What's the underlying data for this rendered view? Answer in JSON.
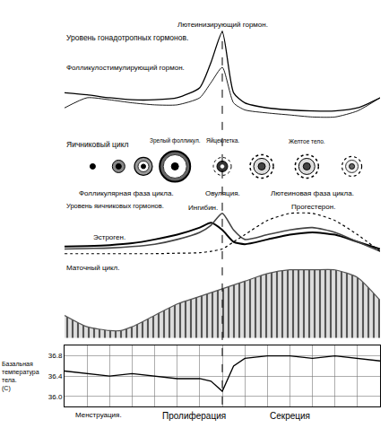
{
  "chart_data": [
    {
      "type": "line",
      "title": "Уровень гонадотропных гормонов.",
      "x": [
        0,
        2,
        4,
        6,
        8,
        10,
        12,
        13,
        14,
        15,
        16,
        18,
        20,
        22,
        24,
        26,
        28
      ],
      "xlim": [
        0,
        28
      ],
      "ylim": [
        0,
        10.5
      ],
      "tick_labels": false,
      "series": [
        {
          "name": "Лютеинизирующий гормон.",
          "color": "#000000",
          "line_style": "solid",
          "values": [
            4,
            3.8,
            3.5,
            3.3,
            3.3,
            3.5,
            4.5,
            7,
            10,
            4,
            3,
            2.5,
            2.3,
            2.2,
            2.2,
            2.5,
            3.5
          ]
        },
        {
          "name": "Фолликулостимулирующий гормон.",
          "color": "#000000",
          "line_style": "solid",
          "values": [
            2.5,
            3.5,
            3.3,
            3,
            2.8,
            2.8,
            3.5,
            5,
            6.5,
            3,
            2.3,
            2,
            1.8,
            1.6,
            1.6,
            2.2,
            3.5
          ]
        }
      ]
    },
    {
      "type": "diagram",
      "title": "Яичниковый цикл",
      "xlim": [
        0,
        28
      ],
      "ovulation_day": 14,
      "stages": [
        {
          "day": 2.5
        },
        {
          "day": 4.8
        },
        {
          "day": 7
        },
        {
          "day": 9.8,
          "label": "Зрелый фолликул."
        },
        {
          "day": 14,
          "label": "Яйцеклетка."
        },
        {
          "day": 17.5
        },
        {
          "day": 21.5,
          "label": "Желтое тело."
        },
        {
          "day": 25.5
        }
      ],
      "phases": [
        {
          "day": 5.5,
          "label": "Фолликулярная фаза цикла."
        },
        {
          "day": 14,
          "label": "Овуляция."
        },
        {
          "day": 22,
          "label": "Лютеиновая фаза цикла."
        }
      ]
    },
    {
      "type": "line",
      "title": "Уровень яичниковых гормонов.",
      "x": [
        0,
        2,
        4,
        6,
        8,
        10,
        12,
        13,
        14,
        15,
        16,
        18,
        20,
        22,
        24,
        26,
        28
      ],
      "xlim": [
        0,
        28
      ],
      "ylim": [
        0,
        12
      ],
      "tick_labels": false,
      "series": [
        {
          "name": "Эстроген.",
          "color": "#000000",
          "line_style": "solid",
          "values": [
            2.5,
            2.6,
            2.8,
            3.2,
            4,
            5,
            6.5,
            7.5,
            6,
            3.5,
            3,
            4,
            5,
            5.5,
            5,
            3.5,
            2
          ]
        },
        {
          "name": "Ингибин.",
          "color": "#444444",
          "line_style": "solid",
          "values": [
            2,
            2.1,
            2.2,
            2.5,
            3,
            4,
            5.5,
            7,
            9.5,
            6,
            4,
            5,
            6,
            6.5,
            5.5,
            3.5,
            1.5
          ]
        },
        {
          "name": "Прогестерон.",
          "color": "#000000",
          "line_style": "dotted",
          "values": [
            1,
            1,
            1,
            1,
            1,
            1.1,
            1.2,
            1.5,
            2,
            3.5,
            5,
            8,
            9.5,
            9.5,
            8,
            5,
            1.5
          ]
        }
      ]
    },
    {
      "type": "area",
      "title": "Маточный цикл.",
      "x": [
        0,
        2,
        4,
        5,
        6,
        8,
        10,
        12,
        14,
        16,
        18,
        20,
        22,
        24,
        26,
        28
      ],
      "xlim": [
        0,
        28
      ],
      "ylim": [
        0,
        10
      ],
      "tick_labels": false,
      "color": "#555555",
      "values": [
        3,
        1.5,
        1,
        1,
        1.5,
        3,
        4.5,
        5.5,
        6.5,
        7.5,
        8.5,
        9,
        9,
        9,
        8,
        5
      ]
    },
    {
      "type": "line",
      "title_lines": [
        "Базальная",
        "температура",
        "тела.",
        "(С)"
      ],
      "x": [
        0,
        2,
        4,
        6,
        8,
        10,
        12,
        13,
        14,
        15,
        16,
        18,
        20,
        22,
        24,
        26,
        28
      ],
      "xlim": [
        0,
        28
      ],
      "ylim": [
        35.8,
        37.0
      ],
      "xticks": [
        0,
        2,
        4,
        6,
        8,
        10,
        12,
        14,
        16,
        18,
        20,
        22,
        24,
        26,
        28
      ],
      "yticks": [
        {
          "value": 36,
          "label": "36.0"
        },
        36.4,
        36.8
      ],
      "grid": true,
      "tick_labels": "y",
      "color": "#000000",
      "values": [
        36.5,
        36.45,
        36.4,
        36.45,
        36.4,
        36.35,
        36.35,
        36.3,
        36.1,
        36.6,
        36.75,
        36.8,
        36.8,
        36.75,
        36.8,
        36.75,
        36.7
      ],
      "phases": [
        {
          "day": 3,
          "label": "Менструация."
        },
        {
          "day": 11.5,
          "label": "Пролиферация"
        },
        {
          "day": 20,
          "label": "Секреция"
        }
      ]
    }
  ]
}
